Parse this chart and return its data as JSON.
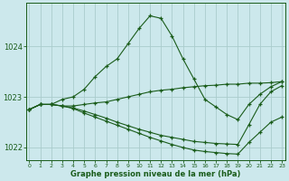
{
  "bg_color": "#cce8ec",
  "grid_color": "#aacccc",
  "line_color": "#1a5c1a",
  "marker_color": "#1a5c1a",
  "xlabel": "Graphe pression niveau de la mer (hPa)",
  "xlabel_color": "#1a5c1a",
  "tick_color": "#1a5c1a",
  "ylim": [
    1021.75,
    1024.85
  ],
  "yticks": [
    1022,
    1023,
    1024
  ],
  "xlim": [
    -0.3,
    23.3
  ],
  "xticks": [
    0,
    1,
    2,
    3,
    4,
    5,
    6,
    7,
    8,
    9,
    10,
    11,
    12,
    13,
    14,
    15,
    16,
    17,
    18,
    19,
    20,
    21,
    22,
    23
  ],
  "series": [
    {
      "x": [
        0,
        1,
        2,
        3,
        4,
        5,
        6,
        7,
        8,
        9,
        10,
        11,
        12,
        13,
        14,
        15,
        16,
        17,
        18,
        19,
        20,
        21,
        22,
        23
      ],
      "y": [
        1022.75,
        1022.85,
        1022.85,
        1022.95,
        1023.0,
        1023.15,
        1023.4,
        1023.6,
        1023.75,
        1024.05,
        1024.35,
        1024.6,
        1024.55,
        1024.2,
        1023.75,
        1023.35,
        1022.95,
        1022.8,
        1022.65,
        1022.55,
        1022.85,
        1023.05,
        1023.2,
        1023.3
      ]
    },
    {
      "x": [
        0,
        1,
        2,
        3,
        4,
        5,
        6,
        7,
        8,
        9,
        10,
        11,
        12,
        13,
        14,
        15,
        16,
        17,
        18,
        19,
        20,
        21,
        22,
        23
      ],
      "y": [
        1022.75,
        1022.85,
        1022.85,
        1022.82,
        1022.82,
        1022.85,
        1022.88,
        1022.9,
        1022.95,
        1023.0,
        1023.05,
        1023.1,
        1023.13,
        1023.15,
        1023.18,
        1023.2,
        1023.22,
        1023.23,
        1023.25,
        1023.25,
        1023.27,
        1023.27,
        1023.28,
        1023.3
      ]
    },
    {
      "x": [
        0,
        1,
        2,
        3,
        4,
        5,
        6,
        7,
        8,
        9,
        10,
        11,
        12,
        13,
        14,
        15,
        16,
        17,
        18,
        19,
        20,
        21,
        22,
        23
      ],
      "y": [
        1022.75,
        1022.85,
        1022.85,
        1022.82,
        1022.78,
        1022.72,
        1022.65,
        1022.58,
        1022.5,
        1022.43,
        1022.36,
        1022.3,
        1022.24,
        1022.2,
        1022.16,
        1022.12,
        1022.1,
        1022.08,
        1022.07,
        1022.06,
        1022.45,
        1022.85,
        1023.1,
        1023.22
      ]
    },
    {
      "x": [
        0,
        1,
        2,
        3,
        4,
        5,
        6,
        7,
        8,
        9,
        10,
        11,
        12,
        13,
        14,
        15,
        16,
        17,
        18,
        19,
        20,
        21,
        22,
        23
      ],
      "y": [
        1022.75,
        1022.85,
        1022.85,
        1022.82,
        1022.77,
        1022.68,
        1022.6,
        1022.52,
        1022.44,
        1022.36,
        1022.28,
        1022.2,
        1022.13,
        1022.06,
        1022.0,
        1021.95,
        1021.92,
        1021.9,
        1021.88,
        1021.87,
        1022.1,
        1022.3,
        1022.5,
        1022.6
      ]
    }
  ]
}
